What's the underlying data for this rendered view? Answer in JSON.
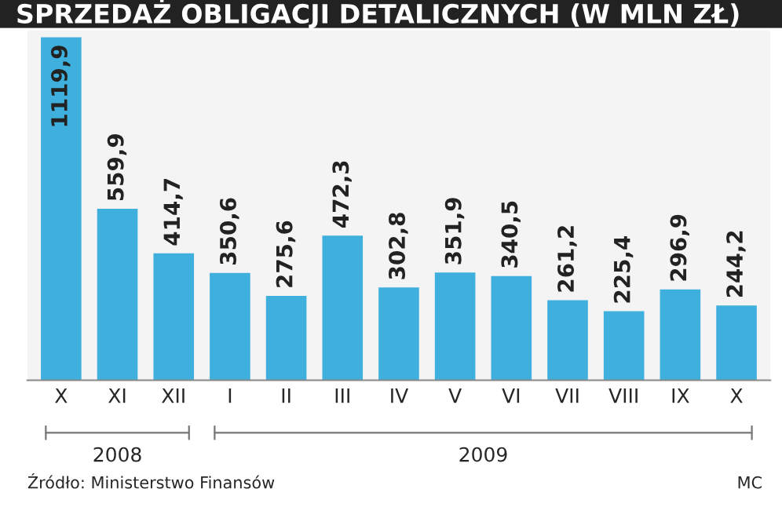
{
  "chart_data": {
    "type": "bar",
    "title": "SPRZEDAŻ OBLIGACJI DETALICZNYCH (W MLN ZŁ)",
    "categories": [
      "X",
      "XI",
      "XII",
      "I",
      "II",
      "III",
      "IV",
      "V",
      "VI",
      "VII",
      "VIII",
      "IX",
      "X"
    ],
    "values": [
      1119.9,
      559.9,
      414.7,
      350.6,
      275.6,
      472.3,
      302.8,
      351.9,
      340.5,
      261.2,
      225.4,
      296.9,
      244.2
    ],
    "value_labels": [
      "1119,9",
      "559,9",
      "414,7",
      "350,6",
      "275,6",
      "472,3",
      "302,8",
      "351,9",
      "340,5",
      "261,2",
      "225,4",
      "296,9",
      "244,2"
    ],
    "color": "#3fb0de",
    "annotations": [
      "2008",
      "2009",
      "Źródło: Ministerstwo Finansów",
      "MC"
    ]
  }
}
